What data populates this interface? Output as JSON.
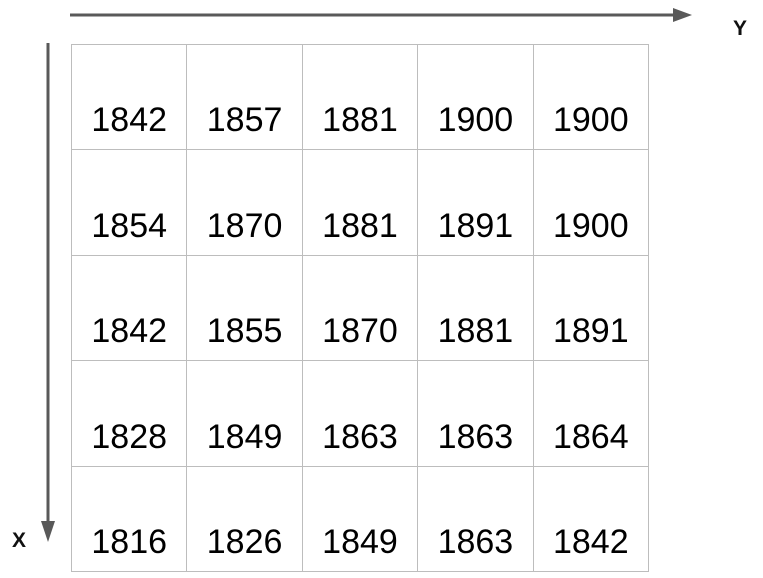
{
  "axes": {
    "y_label": "Y",
    "x_label": "X",
    "arrow_color": "#595959"
  },
  "grid": {
    "rows": [
      [
        "1842",
        "1857",
        "1881",
        "1900",
        "1900"
      ],
      [
        "1854",
        "1870",
        "1881",
        "1891",
        "1900"
      ],
      [
        "1842",
        "1855",
        "1870",
        "1881",
        "1891"
      ],
      [
        "1828",
        "1849",
        "1863",
        "1863",
        "1864"
      ],
      [
        "1816",
        "1826",
        "1849",
        "1863",
        "1842"
      ]
    ]
  }
}
